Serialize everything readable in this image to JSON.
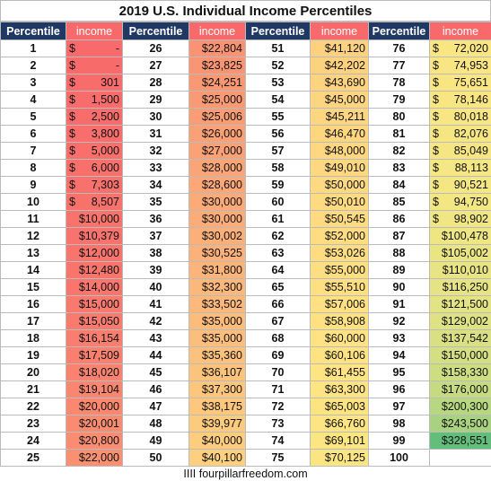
{
  "title": "2019 U.S. Individual Income Percentiles",
  "table": {
    "header": [
      "Percentile",
      "income",
      "Percentile",
      "income",
      "Percentile",
      "income",
      "Percentile",
      "income"
    ],
    "rows": [
      [
        "1",
        "$ -",
        "26",
        "$22,804",
        "51",
        "$41,120",
        "76",
        "$ 72,020"
      ],
      [
        "2",
        "$ -",
        "27",
        "$23,825",
        "52",
        "$42,202",
        "77",
        "$ 74,953"
      ],
      [
        "3",
        "$ 301",
        "28",
        "$24,251",
        "53",
        "$43,690",
        "78",
        "$ 75,651"
      ],
      [
        "4",
        "$ 1,500",
        "29",
        "$25,000",
        "54",
        "$45,000",
        "79",
        "$ 78,146"
      ],
      [
        "5",
        "$ 2,500",
        "30",
        "$25,006",
        "55",
        "$45,211",
        "80",
        "$ 80,018"
      ],
      [
        "6",
        "$ 3,800",
        "31",
        "$26,000",
        "56",
        "$46,470",
        "81",
        "$ 82,076"
      ],
      [
        "7",
        "$ 5,000",
        "32",
        "$27,000",
        "57",
        "$48,000",
        "82",
        "$ 85,049"
      ],
      [
        "8",
        "$ 6,000",
        "33",
        "$28,000",
        "58",
        "$49,010",
        "83",
        "$ 88,113"
      ],
      [
        "9",
        "$ 7,303",
        "34",
        "$28,600",
        "59",
        "$50,000",
        "84",
        "$ 90,521"
      ],
      [
        "10",
        "$ 8,507",
        "35",
        "$30,000",
        "60",
        "$50,010",
        "85",
        "$ 94,750"
      ],
      [
        "11",
        "$10,000",
        "36",
        "$30,000",
        "61",
        "$50,545",
        "86",
        "$ 98,902"
      ],
      [
        "12",
        "$10,379",
        "37",
        "$30,002",
        "62",
        "$52,000",
        "87",
        "$100,478"
      ],
      [
        "13",
        "$12,000",
        "38",
        "$30,525",
        "63",
        "$53,026",
        "88",
        "$105,002"
      ],
      [
        "14",
        "$12,480",
        "39",
        "$31,800",
        "64",
        "$55,000",
        "89",
        "$110,010"
      ],
      [
        "15",
        "$14,000",
        "40",
        "$32,300",
        "65",
        "$55,510",
        "90",
        "$116,250"
      ],
      [
        "16",
        "$15,000",
        "41",
        "$33,502",
        "66",
        "$57,006",
        "91",
        "$121,500"
      ],
      [
        "17",
        "$15,050",
        "42",
        "$35,000",
        "67",
        "$58,908",
        "92",
        "$129,002"
      ],
      [
        "18",
        "$16,154",
        "43",
        "$35,000",
        "68",
        "$60,000",
        "93",
        "$137,542"
      ],
      [
        "19",
        "$17,509",
        "44",
        "$35,360",
        "69",
        "$60,106",
        "94",
        "$150,000"
      ],
      [
        "20",
        "$18,020",
        "45",
        "$36,107",
        "70",
        "$61,455",
        "95",
        "$158,330"
      ],
      [
        "21",
        "$19,104",
        "46",
        "$37,300",
        "71",
        "$63,300",
        "96",
        "$176,000"
      ],
      [
        "22",
        "$20,000",
        "47",
        "$38,175",
        "72",
        "$65,003",
        "97",
        "$200,300"
      ],
      [
        "23",
        "$20,001",
        "48",
        "$39,977",
        "73",
        "$66,760",
        "98",
        "$243,500"
      ],
      [
        "24",
        "$20,800",
        "49",
        "$40,000",
        "74",
        "$69,101",
        "99",
        "$328,551"
      ],
      [
        "25",
        "$22,000",
        "50",
        "$40,100",
        "75",
        "$70,125",
        "100"
      ]
    ]
  },
  "footer": "IIII fourpillarfreedom.com"
}
